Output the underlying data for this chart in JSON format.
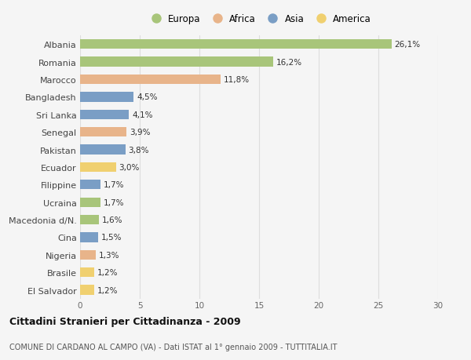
{
  "categories": [
    "Albania",
    "Romania",
    "Marocco",
    "Bangladesh",
    "Sri Lanka",
    "Senegal",
    "Pakistan",
    "Ecuador",
    "Filippine",
    "Ucraina",
    "Macedonia d/N.",
    "Cina",
    "Nigeria",
    "Brasile",
    "El Salvador"
  ],
  "values": [
    26.1,
    16.2,
    11.8,
    4.5,
    4.1,
    3.9,
    3.8,
    3.0,
    1.7,
    1.7,
    1.6,
    1.5,
    1.3,
    1.2,
    1.2
  ],
  "labels": [
    "26,1%",
    "16,2%",
    "11,8%",
    "4,5%",
    "4,1%",
    "3,9%",
    "3,8%",
    "3,0%",
    "1,7%",
    "1,7%",
    "1,6%",
    "1,5%",
    "1,3%",
    "1,2%",
    "1,2%"
  ],
  "continents": [
    "Europa",
    "Europa",
    "Africa",
    "Asia",
    "Asia",
    "Africa",
    "Asia",
    "America",
    "Asia",
    "Europa",
    "Europa",
    "Asia",
    "Africa",
    "America",
    "America"
  ],
  "colors": {
    "Europa": "#a8c57a",
    "Africa": "#e8b48a",
    "Asia": "#7a9ec5",
    "America": "#f0d070"
  },
  "legend_labels": [
    "Europa",
    "Africa",
    "Asia",
    "America"
  ],
  "legend_colors": [
    "#a8c57a",
    "#e8b48a",
    "#7a9ec5",
    "#f0d070"
  ],
  "title": "Cittadini Stranieri per Cittadinanza - 2009",
  "subtitle": "COMUNE DI CARDANO AL CAMPO (VA) - Dati ISTAT al 1° gennaio 2009 - TUTTITALIA.IT",
  "xlim": [
    0,
    30
  ],
  "xticks": [
    0,
    5,
    10,
    15,
    20,
    25,
    30
  ],
  "background_color": "#f5f5f5",
  "grid_color": "#dddddd",
  "bar_height": 0.55,
  "label_fontsize": 7.5,
  "ytick_fontsize": 8,
  "xtick_fontsize": 7.5,
  "title_fontsize": 9,
  "subtitle_fontsize": 7,
  "legend_fontsize": 8.5
}
